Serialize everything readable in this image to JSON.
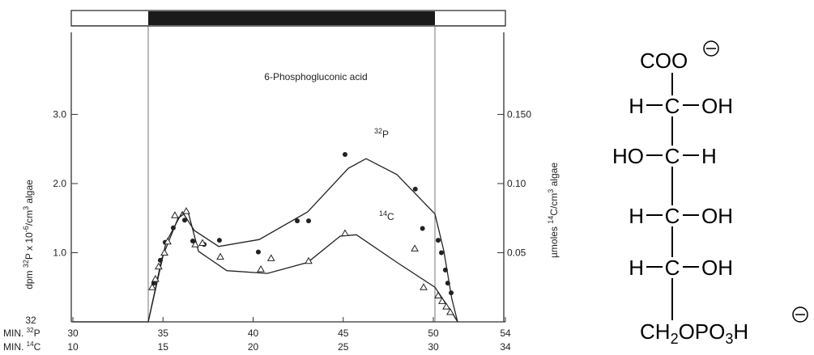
{
  "chart_data": {
    "type": "scatter",
    "title": "6-Phosphogluconic acid",
    "ylabel": [
      "dpm ",
      "32",
      "P x 10",
      "-6",
      "/cm",
      "3",
      " algae"
    ],
    "y2label": [
      "µmoles ",
      "14",
      "C/cm",
      "3",
      " algae"
    ],
    "corner_label": "32",
    "xrow_labels": [
      [
        "MIN. ",
        "32",
        "P"
      ],
      [
        "MIN. ",
        "14",
        "C"
      ]
    ],
    "xlim": [
      30,
      54
    ],
    "xticks": [
      30,
      35,
      40,
      45,
      50,
      54
    ],
    "x2tick_labels": [
      "10",
      "15",
      "20",
      "25",
      "30",
      "34"
    ],
    "ylim": [
      0,
      4.28
    ],
    "yticks": [
      {
        "value": 1,
        "label": "1.0"
      },
      {
        "value": 2,
        "label": "2.0"
      },
      {
        "value": 3,
        "label": "3.0"
      }
    ],
    "y2lim": [
      0,
      0.214
    ],
    "y2ticks": [
      0.05,
      {
        "value": 0.1,
        "label": "0.10"
      },
      {
        "value": 0.15,
        "label": "0.150"
      }
    ],
    "series": [
      {
        "name": [
          "32",
          "P"
        ],
        "axis": "y",
        "marker": "dot",
        "color": "#222",
        "x": [
          34.49,
          34.85,
          35.12,
          35.57,
          36.2,
          36.65,
          37.28,
          38.13,
          40.29,
          42.45,
          43.08,
          45.1,
          49.0,
          49.4,
          50.27,
          50.45,
          50.67,
          50.8,
          50.99
        ],
        "values": [
          0.56,
          0.89,
          1.15,
          1.36,
          1.47,
          1.17,
          1.12,
          1.18,
          1.01,
          1.46,
          1.46,
          2.42,
          1.92,
          1.35,
          1.18,
          1.0,
          0.75,
          0.56,
          0.42
        ],
        "curve_x": [
          30,
          34.18,
          35.17,
          36.07,
          36.74,
          38.09,
          40.34,
          43.03,
          45.28,
          46.27,
          47.98,
          50.09,
          50.58,
          51.03,
          51.35
        ],
        "curve_values": [
          0,
          0,
          1.15,
          1.59,
          1.32,
          1.09,
          1.19,
          1.59,
          2.22,
          2.36,
          2.13,
          1.56,
          1.03,
          0.33,
          0
        ]
      },
      {
        "name": [
          "14",
          "C"
        ],
        "axis": "y2",
        "marker": "triangle",
        "color": "#222",
        "x": [
          34.4,
          34.58,
          34.76,
          35.08,
          35.26,
          35.66,
          36.29,
          36.79,
          37.19,
          38.18,
          40.43,
          41.0,
          43.08,
          45.1,
          48.97,
          49.46,
          50.27,
          50.49,
          50.72,
          50.94
        ],
        "values": [
          0.025,
          0.031,
          0.04,
          0.05,
          0.058,
          0.077,
          0.08,
          0.056,
          0.057,
          0.047,
          0.038,
          0.046,
          0.044,
          0.064,
          0.053,
          0.025,
          0.019,
          0.015,
          0.011,
          0.007
        ],
        "curve_x": [
          34.18,
          34.94,
          35.84,
          36.38,
          36.97,
          38.54,
          40.79,
          43.03,
          44.83,
          45.73,
          47.98,
          50.09,
          51.12,
          51.35
        ],
        "curve_values": [
          0,
          0.046,
          0.075,
          0.08,
          0.051,
          0.037,
          0.035,
          0.043,
          0.062,
          0.063,
          0.043,
          0.025,
          0.005,
          0
        ]
      }
    ]
  },
  "structure": {
    "top": "COO",
    "rows": [
      [
        "H",
        "C",
        "OH"
      ],
      [
        "HO",
        "C",
        "H"
      ],
      [
        "H",
        "C",
        "OH"
      ],
      [
        "H",
        "C",
        "OH"
      ]
    ],
    "bottom": [
      "CH",
      "2",
      "OPO",
      "3",
      "H"
    ]
  }
}
